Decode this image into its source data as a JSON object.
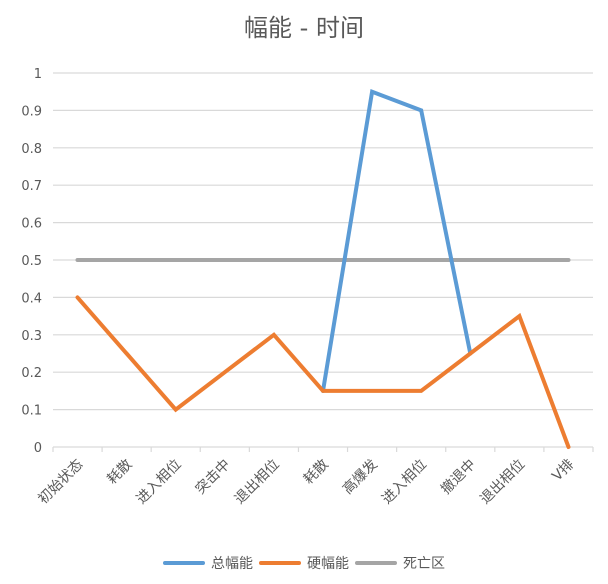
{
  "chart_data": {
    "type": "line",
    "title": "幅能 - 时间",
    "xlabel": "",
    "ylabel": "",
    "ylim": [
      0,
      1
    ],
    "yticks": [
      "0",
      "0.1",
      "0.2",
      "0.3",
      "0.4",
      "0.5",
      "0.6",
      "0.7",
      "0.8",
      "0.9",
      "1"
    ],
    "grid": true,
    "legend_position": "bottom",
    "categories": [
      "初始状态",
      "耗散",
      "进入相位",
      "突击中",
      "退出相位",
      "耗散",
      "高爆发",
      "进入相位",
      "撤退中",
      "退出相位",
      "V排"
    ],
    "series": [
      {
        "name": "总幅能",
        "color": "#5B9BD5",
        "values": [
          null,
          null,
          null,
          null,
          null,
          0.15,
          0.95,
          0.9,
          0.25,
          null,
          null
        ]
      },
      {
        "name": "硬幅能",
        "color": "#ED7D31",
        "values": [
          0.4,
          0.25,
          0.1,
          0.2,
          0.3,
          0.15,
          0.15,
          0.15,
          0.25,
          0.35,
          0
        ]
      },
      {
        "name": "死亡区",
        "color": "#A5A5A5",
        "values": [
          0.5,
          0.5,
          0.5,
          0.5,
          0.5,
          0.5,
          0.5,
          0.5,
          0.5,
          0.5,
          0.5
        ]
      }
    ]
  },
  "legend": [
    {
      "label": "总幅能",
      "color": "#5B9BD5"
    },
    {
      "label": "硬幅能",
      "color": "#ED7D31"
    },
    {
      "label": "死亡区",
      "color": "#A5A5A5"
    }
  ]
}
